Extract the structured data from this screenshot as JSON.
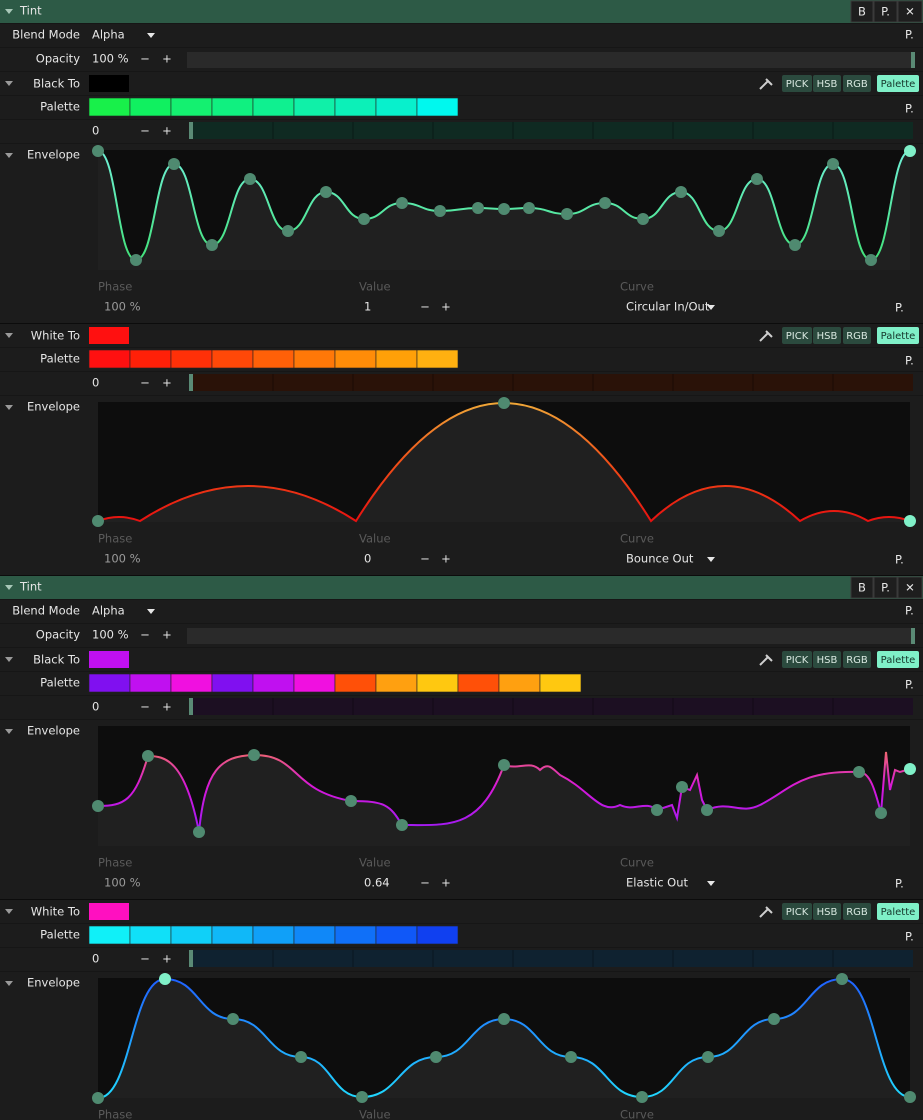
{
  "panels": [
    {
      "header": {
        "title": "Tint",
        "buttons": [
          "B",
          "P.",
          "✕"
        ]
      },
      "blend_mode": {
        "label": "Blend Mode",
        "value": "Alpha",
        "button": "P."
      },
      "opacity": {
        "label": "Opacity",
        "value": "100 %",
        "minus": "−",
        "plus": "+"
      },
      "sections": [
        {
          "label": "Black To",
          "color": "#000000",
          "buttons": [
            "PICK",
            "HSB",
            "RGB",
            "Palette"
          ],
          "palette": {
            "label": "Palette",
            "swatches": [
              "#18f04a",
              "#10f060",
              "#14f070",
              "#10f080",
              "#0ff090",
              "#10f0a8",
              "#0cf0b8",
              "#08f0cc",
              "#00f8ee"
            ],
            "button": "P.",
            "index": "0",
            "minus": "−",
            "plus": "+"
          },
          "envelope": {
            "label": "Envelope",
            "phase_label": "Phase",
            "value_label": "Value",
            "curve_label": "Curve",
            "phase": "100 %",
            "value": "1",
            "minus": "−",
            "plus": "+",
            "curve": "Circular In/Out",
            "button": "P."
          }
        },
        {
          "label": "White To",
          "color": "#ff1010",
          "buttons": [
            "PICK",
            "HSB",
            "RGB",
            "Palette"
          ],
          "palette": {
            "label": "Palette",
            "swatches": [
              "#ff1010",
              "#ff2008",
              "#ff3008",
              "#ff4808",
              "#ff6008",
              "#ff7808",
              "#ff8c08",
              "#ffa008",
              "#ffb010"
            ],
            "button": "P.",
            "index": "0",
            "minus": "−",
            "plus": "+"
          },
          "envelope": {
            "label": "Envelope",
            "phase_label": "Phase",
            "value_label": "Value",
            "curve_label": "Curve",
            "phase": "100 %",
            "value": "0",
            "minus": "−",
            "plus": "+",
            "curve": "Bounce Out",
            "button": "P."
          }
        }
      ]
    },
    {
      "header": {
        "title": "Tint",
        "buttons": [
          "B",
          "P.",
          "✕"
        ]
      },
      "blend_mode": {
        "label": "Blend Mode",
        "value": "Alpha",
        "button": "P."
      },
      "opacity": {
        "label": "Opacity",
        "value": "100 %",
        "minus": "−",
        "plus": "+"
      },
      "sections": [
        {
          "label": "Black To",
          "color": "#c010f0",
          "buttons": [
            "PICK",
            "HSB",
            "RGB",
            "Palette"
          ],
          "palette": {
            "label": "Palette",
            "swatches": [
              "#8010f0",
              "#c010f0",
              "#f010e0",
              "#8010f0",
              "#c010f0",
              "#f010e0",
              "#ff5008",
              "#ffa010",
              "#ffc810",
              "#ff5008",
              "#ffa010",
              "#ffc810"
            ],
            "button": "P.",
            "index": "0",
            "minus": "−",
            "plus": "+"
          },
          "envelope": {
            "label": "Envelope",
            "phase_label": "Phase",
            "value_label": "Value",
            "curve_label": "Curve",
            "phase": "100 %",
            "value": "0.64",
            "minus": "−",
            "plus": "+",
            "curve": "Elastic Out",
            "button": "P."
          }
        },
        {
          "label": "White To",
          "color": "#ff10c0",
          "buttons": [
            "PICK",
            "HSB",
            "RGB",
            "Palette"
          ],
          "palette": {
            "label": "Palette",
            "swatches": [
              "#10f0f8",
              "#10e0f8",
              "#10d0f8",
              "#10b8f8",
              "#10a0f8",
              "#1088f8",
              "#1070f8",
              "#1058f8",
              "#1040f0"
            ],
            "button": "P.",
            "index": "0",
            "minus": "−",
            "plus": "+"
          },
          "envelope": {
            "label": "Envelope",
            "phase_label": "Phase",
            "value_label": "Value",
            "curve_label": "Curve"
          }
        }
      ]
    }
  ]
}
